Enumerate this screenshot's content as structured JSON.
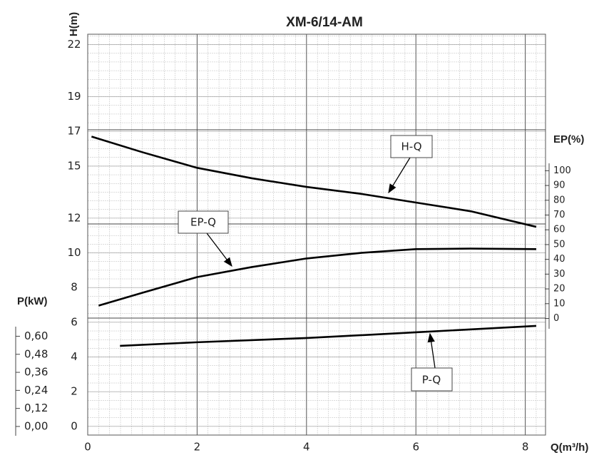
{
  "chart_data": {
    "type": "line",
    "title": "XM-6/14-AM",
    "x_label": "Q(m³/h)",
    "y_label": "H(m)",
    "y2_label": "EP(%)",
    "y3_label": "P(kW)",
    "xlim": [
      0,
      8.37
    ],
    "xticks": [
      0,
      2,
      4,
      6,
      8
    ],
    "ylim": [
      -0.5,
      22.6
    ],
    "yticks": [
      0,
      2,
      4,
      6,
      8,
      10,
      12,
      15,
      17,
      19,
      22
    ],
    "y2lim": [
      -7,
      105
    ],
    "y2ticks": [
      0,
      10,
      20,
      30,
      40,
      50,
      60,
      70,
      80,
      90,
      100
    ],
    "y3lim": [
      -0.06,
      0.66
    ],
    "y3ticks": [
      {
        "value": 0,
        "label": "0,00"
      },
      {
        "value": 0.12,
        "label": "0,12"
      },
      {
        "value": 0.24,
        "label": "0,24"
      },
      {
        "value": 0.36,
        "label": "0,36"
      },
      {
        "value": 0.48,
        "label": "0,48"
      },
      {
        "value": 0.6,
        "label": "0,60"
      }
    ],
    "grid": true,
    "series": [
      {
        "name": "H-Q",
        "color": "#000000",
        "axis": "y",
        "x": [
          0.07,
          1,
          2,
          3,
          4,
          5,
          6,
          7,
          8.2
        ],
        "values": [
          16.7,
          15.8,
          14.9,
          14.3,
          13.8,
          13.4,
          12.9,
          12.4,
          11.5
        ]
      },
      {
        "name": "EP-Q",
        "color": "#000000",
        "axis": "y2",
        "x": [
          0.2,
          1,
          2,
          3,
          4,
          5,
          6,
          7,
          8.2
        ],
        "values": [
          8.7,
          17.4,
          28,
          34.8,
          40.6,
          44.4,
          46.9,
          47.3,
          46.9
        ]
      },
      {
        "name": "P-Q",
        "color": "#000000",
        "axis": "y3",
        "x": [
          0.59,
          2,
          4,
          6,
          8.2
        ],
        "values": [
          0.536,
          0.56,
          0.588,
          0.626,
          0.669
        ]
      }
    ]
  }
}
